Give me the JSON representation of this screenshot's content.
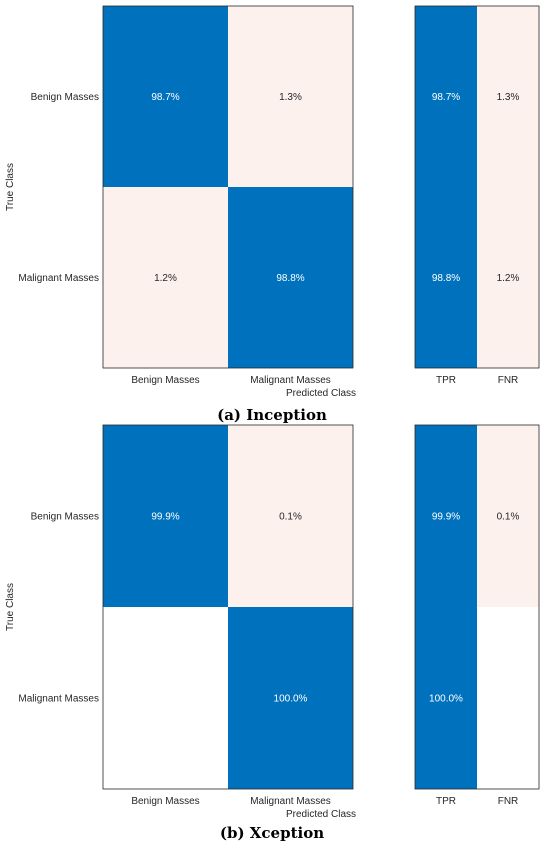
{
  "colors": {
    "high": "#0072bd",
    "low": "#fdf1ee",
    "empty": "#ffffff",
    "text_on_high": "#ffffff",
    "text_on_low": "#262626",
    "border": "#262626"
  },
  "chart_data": [
    {
      "type": "heatmap",
      "caption": "(a) Inception",
      "xlabel": "Predicted Class",
      "ylabel": "True Class",
      "rows": [
        "Benign Masses",
        "Malignant Masses"
      ],
      "columns": [
        "Benign Masses",
        "Malignant Masses"
      ],
      "values": [
        [
          98.7,
          1.3
        ],
        [
          1.2,
          98.8
        ]
      ],
      "labels": [
        [
          "98.7%",
          "1.3%"
        ],
        [
          "1.2%",
          "98.8%"
        ]
      ],
      "summary_columns": [
        "TPR",
        "FNR"
      ],
      "summary_values": [
        [
          98.7,
          1.3
        ],
        [
          98.8,
          1.2
        ]
      ],
      "summary_labels": [
        [
          "98.7%",
          "1.3%"
        ],
        [
          "98.8%",
          "1.2%"
        ]
      ]
    },
    {
      "type": "heatmap",
      "caption": "(b) Xception",
      "xlabel": "Predicted Class",
      "ylabel": "True Class",
      "rows": [
        "Benign Masses",
        "Malignant Masses"
      ],
      "columns": [
        "Benign Masses",
        "Malignant Masses"
      ],
      "values": [
        [
          99.9,
          0.1
        ],
        [
          0,
          100.0
        ]
      ],
      "labels": [
        [
          "99.9%",
          "0.1%"
        ],
        [
          "",
          "100.0%"
        ]
      ],
      "summary_columns": [
        "TPR",
        "FNR"
      ],
      "summary_values": [
        [
          99.9,
          0.1
        ],
        [
          100.0,
          0
        ]
      ],
      "summary_labels": [
        [
          "99.9%",
          "0.1%"
        ],
        [
          "100.0%",
          ""
        ]
      ]
    }
  ]
}
